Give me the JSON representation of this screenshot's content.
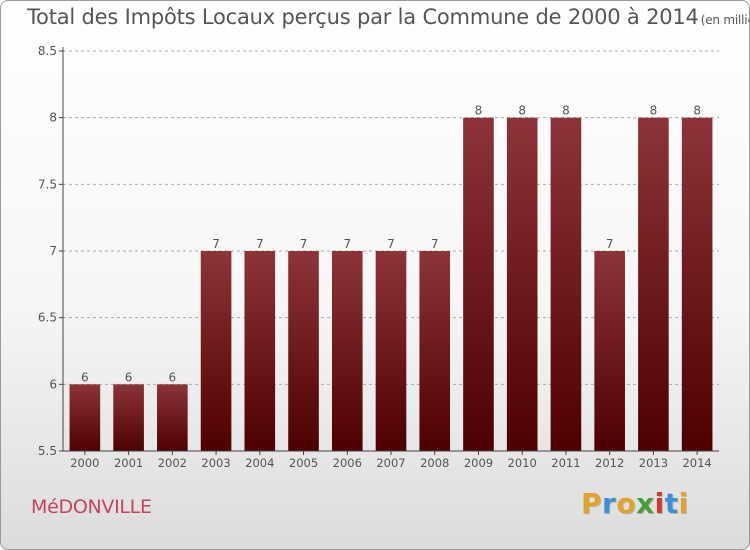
{
  "title": "Total des Impôts Locaux perçus par la Commune de 2000 à 2014",
  "title_unit": "(en milliers d'€)",
  "commune": "MéDONVILLE",
  "logo": {
    "text": "Proxiti",
    "letters": [
      {
        "char": "P",
        "color": "#e2a32a"
      },
      {
        "char": "r",
        "color": "#3c8fd6"
      },
      {
        "char": "o",
        "color": "#e2a32a"
      },
      {
        "char": "x",
        "color": "#4a9e3a"
      },
      {
        "char": "i",
        "color": "#d6392c"
      },
      {
        "char": "t",
        "color": "#3c8fd6"
      },
      {
        "char": "i",
        "color": "#e2a32a"
      }
    ]
  },
  "colors": {
    "bar_top": "#8c3439",
    "bar_bottom": "#4e0000",
    "axis": "#444444",
    "grid": "#aaaaaa",
    "text": "#555555"
  },
  "chart_data": {
    "type": "bar",
    "title": "Total des Impôts Locaux perçus par la Commune de 2000 à 2014",
    "xlabel": "",
    "ylabel": "",
    "categories": [
      "2000",
      "2001",
      "2002",
      "2003",
      "2004",
      "2005",
      "2006",
      "2007",
      "2008",
      "2009",
      "2010",
      "2011",
      "2012",
      "2013",
      "2014"
    ],
    "values": [
      6,
      6,
      6,
      7,
      7,
      7,
      7,
      7,
      7,
      8,
      8,
      8,
      7,
      8,
      8
    ],
    "data_labels": [
      "6",
      "6",
      "6",
      "7",
      "7",
      "7",
      "7",
      "7",
      "7",
      "8",
      "8",
      "8",
      "7",
      "8",
      "8"
    ],
    "ylim": [
      5.5,
      8.5
    ],
    "yticks": [
      5.5,
      6,
      6.5,
      7,
      7.5,
      8,
      8.5
    ],
    "ytick_labels": [
      "5.5",
      "6",
      "6.5",
      "7",
      "7.5",
      "8",
      "8.5"
    ],
    "grid": "horizontal dashed",
    "legend": "none"
  }
}
